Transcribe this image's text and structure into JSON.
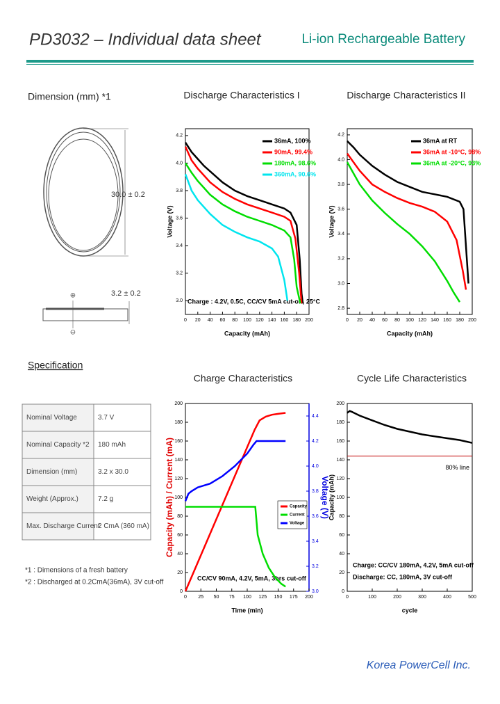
{
  "header": {
    "title": "PD3032 – Individual data sheet",
    "subtitle": "Li-ion Rechargeable Battery"
  },
  "dimension": {
    "title": "Dimension (mm) *1",
    "diameter": "30.0 ± 0.2",
    "thickness": "3.2 ± 0.2",
    "plus": "⊕",
    "minus": "⊖"
  },
  "specification": {
    "title": "Specification",
    "rows": [
      [
        "Nominal Voltage",
        "3.7 V"
      ],
      [
        "Nominal Capacity *2",
        "180 mAh"
      ],
      [
        "Dimension (mm)",
        "3.2 x 30.0"
      ],
      [
        "Weight (Approx.)",
        "7.2 g"
      ],
      [
        "Max. Discharge Current",
        "2 CmA (360 mA)"
      ]
    ]
  },
  "footnotes": [
    "*1 : Dimensions of a fresh battery",
    "*2 : Discharged at 0.2CmA(36mA), 3V cut-off"
  ],
  "footer": "Korea PowerCell Inc.",
  "chart_data": [
    {
      "type": "line",
      "title": "Discharge Characteristics I",
      "xlabel": "Capacity (mAh)",
      "ylabel": "Voltage (V)",
      "xlim": [
        0,
        200
      ],
      "xticks": [
        0,
        20,
        40,
        60,
        80,
        100,
        120,
        140,
        160,
        180,
        200
      ],
      "ylim": [
        2.9,
        4.25
      ],
      "yticks": [
        {
          "value": 3,
          "label": "3.0"
        },
        3.2,
        3.4,
        3.6,
        3.8,
        {
          "value": 4,
          "label": "4.0"
        },
        4.2
      ],
      "annotations": [
        "Charge : 4.2V, 0.5C, CC/CV 5mA cut-off, 25°C"
      ],
      "series": [
        {
          "name": "36mA, 100%",
          "color": "#000000",
          "x": [
            0,
            10,
            20,
            30,
            40,
            60,
            80,
            100,
            120,
            140,
            160,
            170,
            180,
            185,
            188,
            190
          ],
          "values": [
            4.15,
            4.08,
            4.03,
            3.98,
            3.94,
            3.86,
            3.8,
            3.76,
            3.73,
            3.7,
            3.67,
            3.64,
            3.55,
            3.3,
            3.05,
            2.98
          ]
        },
        {
          "name": "90mA, 99.4%",
          "color": "#ff0000",
          "x": [
            0,
            10,
            20,
            30,
            40,
            60,
            80,
            100,
            120,
            140,
            160,
            170,
            178,
            184,
            188
          ],
          "values": [
            4.12,
            4.02,
            3.96,
            3.91,
            3.86,
            3.79,
            3.74,
            3.7,
            3.67,
            3.64,
            3.61,
            3.58,
            3.45,
            3.2,
            2.98
          ]
        },
        {
          "name": "180mA, 98.6%",
          "color": "#00dd00",
          "x": [
            0,
            10,
            20,
            30,
            40,
            60,
            80,
            100,
            120,
            140,
            160,
            170,
            176,
            180,
            186
          ],
          "values": [
            4.0,
            3.93,
            3.87,
            3.82,
            3.77,
            3.7,
            3.65,
            3.61,
            3.58,
            3.55,
            3.51,
            3.46,
            3.3,
            3.1,
            2.98
          ]
        },
        {
          "name": "360mA, 90.6%",
          "color": "#00e5ee",
          "x": [
            0,
            10,
            20,
            30,
            40,
            60,
            80,
            100,
            120,
            140,
            150,
            160,
            165
          ],
          "values": [
            3.92,
            3.8,
            3.73,
            3.68,
            3.63,
            3.55,
            3.5,
            3.46,
            3.43,
            3.38,
            3.32,
            3.15,
            3.0
          ]
        }
      ]
    },
    {
      "type": "line",
      "title": "Discharge Characteristics II",
      "xlabel": "Capacity (mAh)",
      "ylabel": "Voltage (V)",
      "xlim": [
        0,
        200
      ],
      "xticks": [
        0,
        20,
        40,
        60,
        80,
        100,
        120,
        140,
        160,
        180,
        200
      ],
      "ylim": [
        2.75,
        4.25
      ],
      "yticks": [
        2.8,
        {
          "value": 3,
          "label": "3.0"
        },
        3.2,
        3.4,
        3.6,
        3.8,
        {
          "value": 4,
          "label": "4.0"
        },
        4.2
      ],
      "series": [
        {
          "name": "36mA at RT",
          "color": "#000000",
          "x": [
            0,
            10,
            20,
            40,
            60,
            80,
            100,
            120,
            140,
            160,
            180,
            186,
            190,
            194
          ],
          "values": [
            4.15,
            4.1,
            4.04,
            3.95,
            3.88,
            3.82,
            3.78,
            3.74,
            3.72,
            3.7,
            3.66,
            3.6,
            3.3,
            3.0
          ]
        },
        {
          "name": "36mA at -10°C, 98%",
          "color": "#ff0000",
          "x": [
            0,
            10,
            20,
            40,
            60,
            80,
            100,
            120,
            140,
            160,
            175,
            185,
            190
          ],
          "values": [
            4.05,
            3.98,
            3.91,
            3.8,
            3.74,
            3.69,
            3.65,
            3.62,
            3.58,
            3.5,
            3.35,
            3.1,
            2.95
          ]
        },
        {
          "name": "36mA at -20°C, 93%",
          "color": "#00dd00",
          "x": [
            0,
            10,
            20,
            40,
            60,
            80,
            100,
            120,
            140,
            160,
            170,
            180
          ],
          "values": [
            3.98,
            3.89,
            3.8,
            3.67,
            3.57,
            3.48,
            3.4,
            3.3,
            3.18,
            3.02,
            2.93,
            2.85
          ]
        }
      ]
    },
    {
      "type": "line",
      "title": "Charge Characteristics",
      "xlabel": "Time (min)",
      "ylabel": "Capacity (mAh) / Current (mA)",
      "ylabel_color": "#e00000",
      "y2label": "Voltage (V)",
      "y2label_color": "#0000e0",
      "xlim": [
        0,
        200
      ],
      "xticks": [
        0,
        25,
        50,
        75,
        100,
        125,
        150,
        175,
        200
      ],
      "ylim": [
        0,
        200
      ],
      "yticks": [
        0,
        20,
        40,
        60,
        80,
        100,
        120,
        140,
        160,
        180,
        200
      ],
      "y2lim": [
        3.0,
        4.5
      ],
      "y2ticks": [
        {
          "value": 3,
          "label": "3.0"
        },
        3.2,
        3.4,
        3.6,
        3.8,
        {
          "value": 4,
          "label": "4.0"
        },
        4.2,
        4.4
      ],
      "annotations": [
        "CC/CV 90mA, 4.2V, 5mA, 3hrs cut-off"
      ],
      "series": [
        {
          "name": "Capacity",
          "color": "#ff0000",
          "x": [
            0,
            112,
            120,
            130,
            140,
            150,
            162
          ],
          "values": [
            0,
            172,
            182,
            186,
            188,
            189,
            190
          ]
        },
        {
          "name": "Current",
          "color": "#00dd00",
          "x": [
            0,
            113,
            117,
            125,
            135,
            145,
            155,
            162
          ],
          "values": [
            90,
            90,
            60,
            40,
            25,
            15,
            8,
            5
          ]
        },
        {
          "name": "Voltage",
          "color": "#0000ff",
          "axis": "y2",
          "x": [
            0,
            5,
            10,
            20,
            40,
            60,
            80,
            100,
            110,
            115,
            162
          ],
          "values": [
            3.72,
            3.78,
            3.8,
            3.83,
            3.86,
            3.92,
            4.0,
            4.1,
            4.17,
            4.2,
            4.2
          ]
        }
      ]
    },
    {
      "type": "line",
      "title": "Cycle Life Characteristics",
      "xlabel": "cycle",
      "ylabel": "Capacity (mAh)",
      "xlim": [
        0,
        500
      ],
      "xticks": [
        0,
        100,
        200,
        300,
        400,
        500
      ],
      "ylim": [
        0,
        200
      ],
      "yticks": [
        0,
        20,
        40,
        60,
        80,
        100,
        120,
        140,
        160,
        180,
        200
      ],
      "reference_line": {
        "value": 144,
        "label": "80% line",
        "color": "#c00000"
      },
      "annotations": [
        "Charge: CC/CV 180mA, 4.2V, 5mA cut-off",
        "Discharge: CC, 180mA, 3V cut-off"
      ],
      "series": [
        {
          "name": "Capacity",
          "color": "#000000",
          "x": [
            0,
            10,
            20,
            50,
            100,
            150,
            200,
            250,
            300,
            350,
            400,
            450,
            500
          ],
          "values": [
            190,
            192,
            191,
            187,
            182,
            177,
            173,
            170,
            167,
            165,
            163,
            161,
            158
          ]
        }
      ]
    }
  ]
}
